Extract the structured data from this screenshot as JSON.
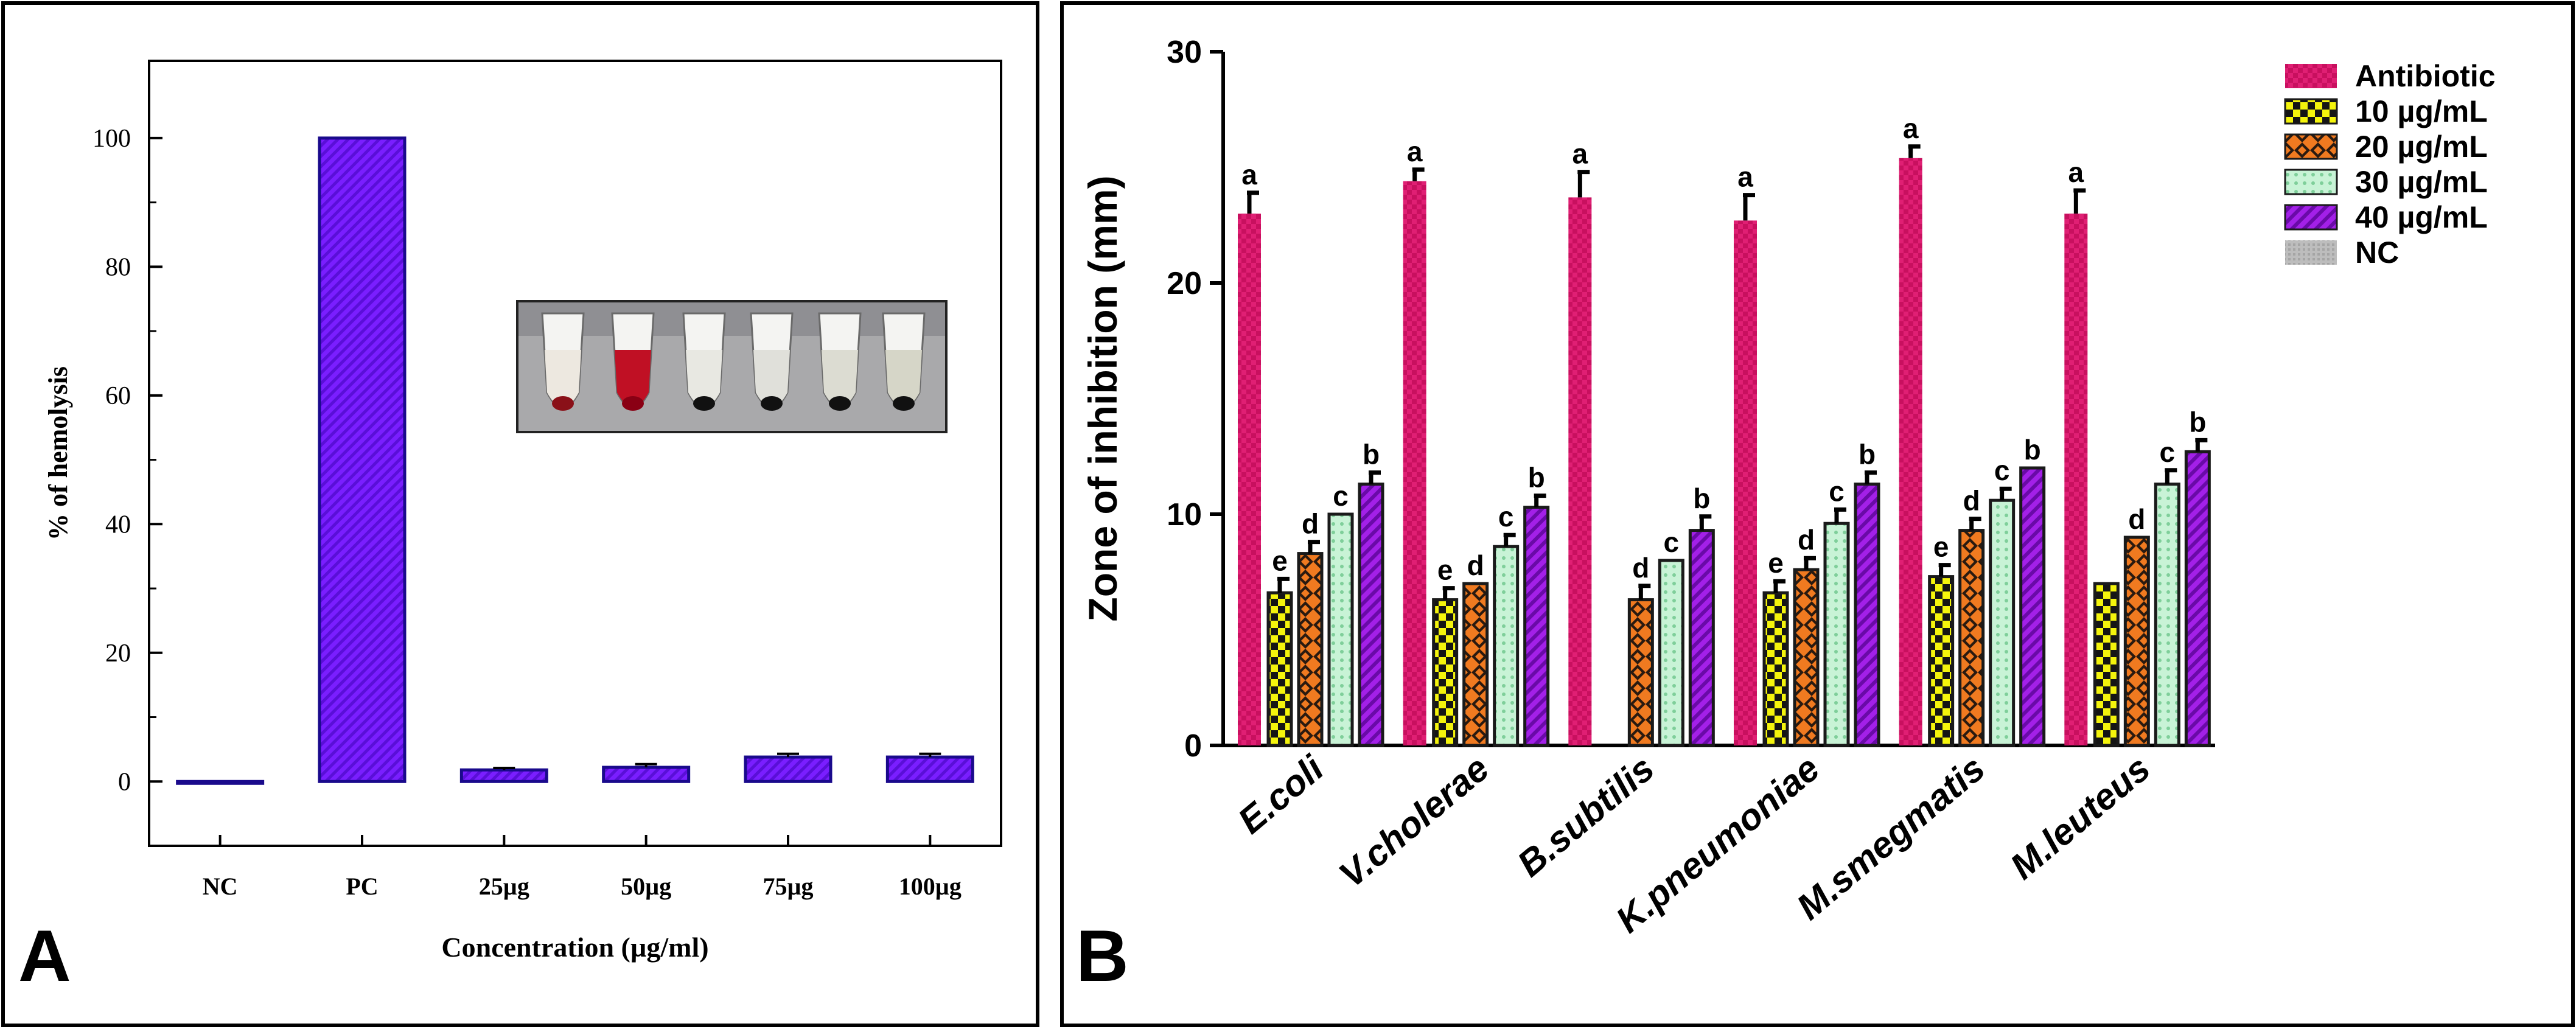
{
  "chart_data": [
    {
      "panel": "A",
      "type": "bar",
      "title": "",
      "xlabel": "Concentration (µg/ml)",
      "ylabel": "% of hemolysis",
      "categories": [
        "NC",
        "PC",
        "25µg",
        "50µg",
        "75µg",
        "100µg"
      ],
      "values": [
        0,
        100,
        1.8,
        2.2,
        3.8,
        3.8
      ],
      "errors": [
        0,
        0,
        0.3,
        0.5,
        0.5,
        0.5
      ],
      "ylim": [
        -10,
        112
      ],
      "yticks": [
        0,
        20,
        40,
        60,
        80,
        100
      ],
      "grid": false,
      "bar_color": "#7a1eff",
      "inset": "hemolysis assay tubes photograph"
    },
    {
      "panel": "B",
      "type": "bar",
      "title": "",
      "xlabel": "",
      "ylabel": "Zone of inhibition (mm)",
      "categories": [
        "E.coli",
        "V.cholerae",
        "B.subtilis",
        "K.pneumoniae",
        "M.smegmatis",
        "M.leuteus"
      ],
      "ylim": [
        0,
        30
      ],
      "yticks": [
        0,
        10,
        20,
        30
      ],
      "legend": "top-right",
      "series": [
        {
          "name": "Antibiotic",
          "color": "#d6176a",
          "values": [
            23.0,
            24.4,
            23.7,
            22.7,
            25.4,
            23.0
          ],
          "errors": [
            0.9,
            0.5,
            1.1,
            1.1,
            0.5,
            1.0
          ],
          "letters": [
            "a",
            "a",
            "a",
            "a",
            "a",
            "a"
          ]
        },
        {
          "name": "10 µg/mL",
          "color": "#f2f20a",
          "values": [
            6.6,
            6.3,
            0,
            6.6,
            7.3,
            7.0
          ],
          "errors": [
            0.6,
            0.5,
            0,
            0.5,
            0.5,
            0
          ],
          "letters": [
            "e",
            "e",
            "",
            "e",
            "e",
            ""
          ]
        },
        {
          "name": "20 µg/mL",
          "color": "#e8641a",
          "values": [
            8.3,
            7.0,
            6.3,
            7.6,
            9.3,
            9.0
          ],
          "errors": [
            0.5,
            0,
            0.6,
            0.5,
            0.5,
            0
          ],
          "letters": [
            "d",
            "d",
            "d",
            "d",
            "d",
            "d"
          ]
        },
        {
          "name": "30 µg/mL",
          "color": "#b4ecc6",
          "values": [
            10.0,
            8.6,
            8.0,
            9.6,
            10.6,
            11.3
          ],
          "errors": [
            0,
            0.5,
            0,
            0.6,
            0.5,
            0.6
          ],
          "letters": [
            "c",
            "c",
            "c",
            "c",
            "c",
            "c"
          ]
        },
        {
          "name": "40 µg/mL",
          "color": "#9c1ad6",
          "values": [
            11.3,
            10.3,
            9.3,
            11.3,
            12.0,
            12.7
          ],
          "errors": [
            0.5,
            0.5,
            0.6,
            0.5,
            0,
            0.5
          ],
          "letters": [
            "b",
            "b",
            "b",
            "b",
            "b",
            "b"
          ]
        },
        {
          "name": "NC",
          "color": "#b5b5b5",
          "values": [
            0,
            0,
            0,
            0,
            0,
            0
          ],
          "errors": [
            0,
            0,
            0,
            0,
            0,
            0
          ],
          "letters": [
            "",
            "",
            "",
            "",
            "",
            ""
          ]
        }
      ]
    }
  ],
  "panel_labels": {
    "a": "A",
    "b": "B"
  }
}
